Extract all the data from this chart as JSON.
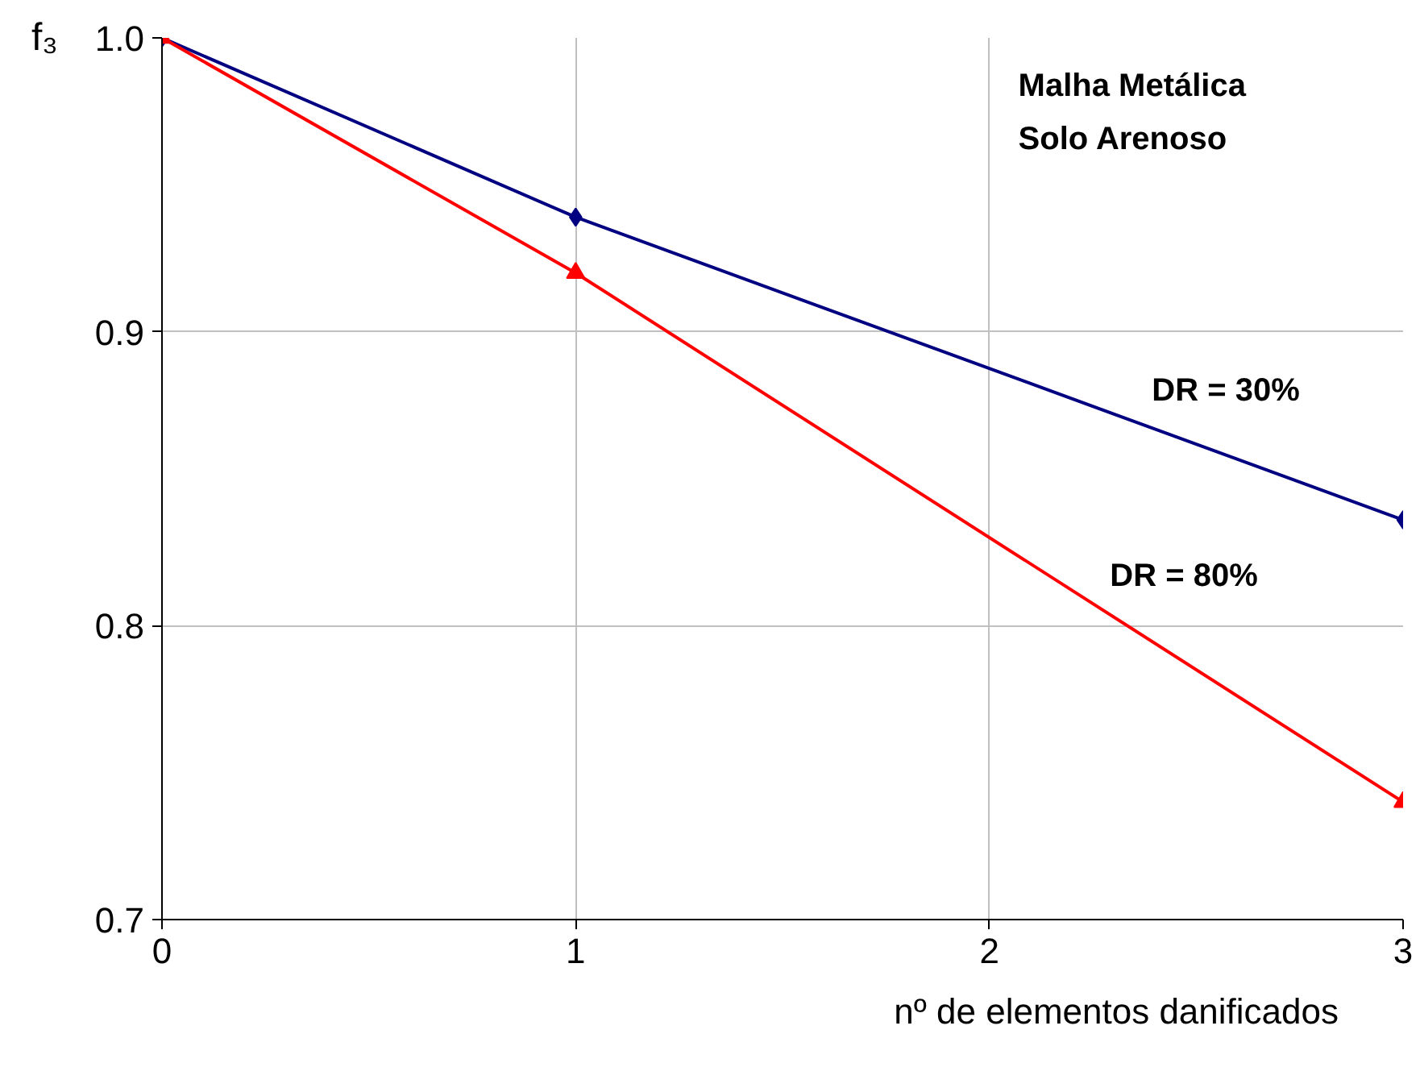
{
  "chart_data": {
    "type": "line",
    "xlabel": "nº de elementos danificados",
    "ylabel": "f₃",
    "x": [
      0,
      1,
      3
    ],
    "series": [
      {
        "name": "DR = 30%",
        "color": "#000080",
        "marker": "diamond",
        "values": [
          1.0,
          0.939,
          0.836
        ]
      },
      {
        "name": "DR = 80%",
        "color": "#ff0000",
        "marker": "triangle",
        "values": [
          1.0,
          0.92,
          0.74
        ]
      }
    ],
    "xlim": [
      0,
      3
    ],
    "xticks": [
      0,
      1,
      2,
      3
    ],
    "ylim": [
      0.7,
      1.0
    ],
    "yticks": [
      {
        "value": 0.7,
        "label": "0.7"
      },
      {
        "value": 0.8,
        "label": "0.8"
      },
      {
        "value": 0.9,
        "label": "0.9"
      },
      {
        "value": 1.0,
        "label": "1.0"
      }
    ],
    "grid": true,
    "annotations": [
      "Malha Metálica",
      "Solo Arenoso"
    ]
  }
}
